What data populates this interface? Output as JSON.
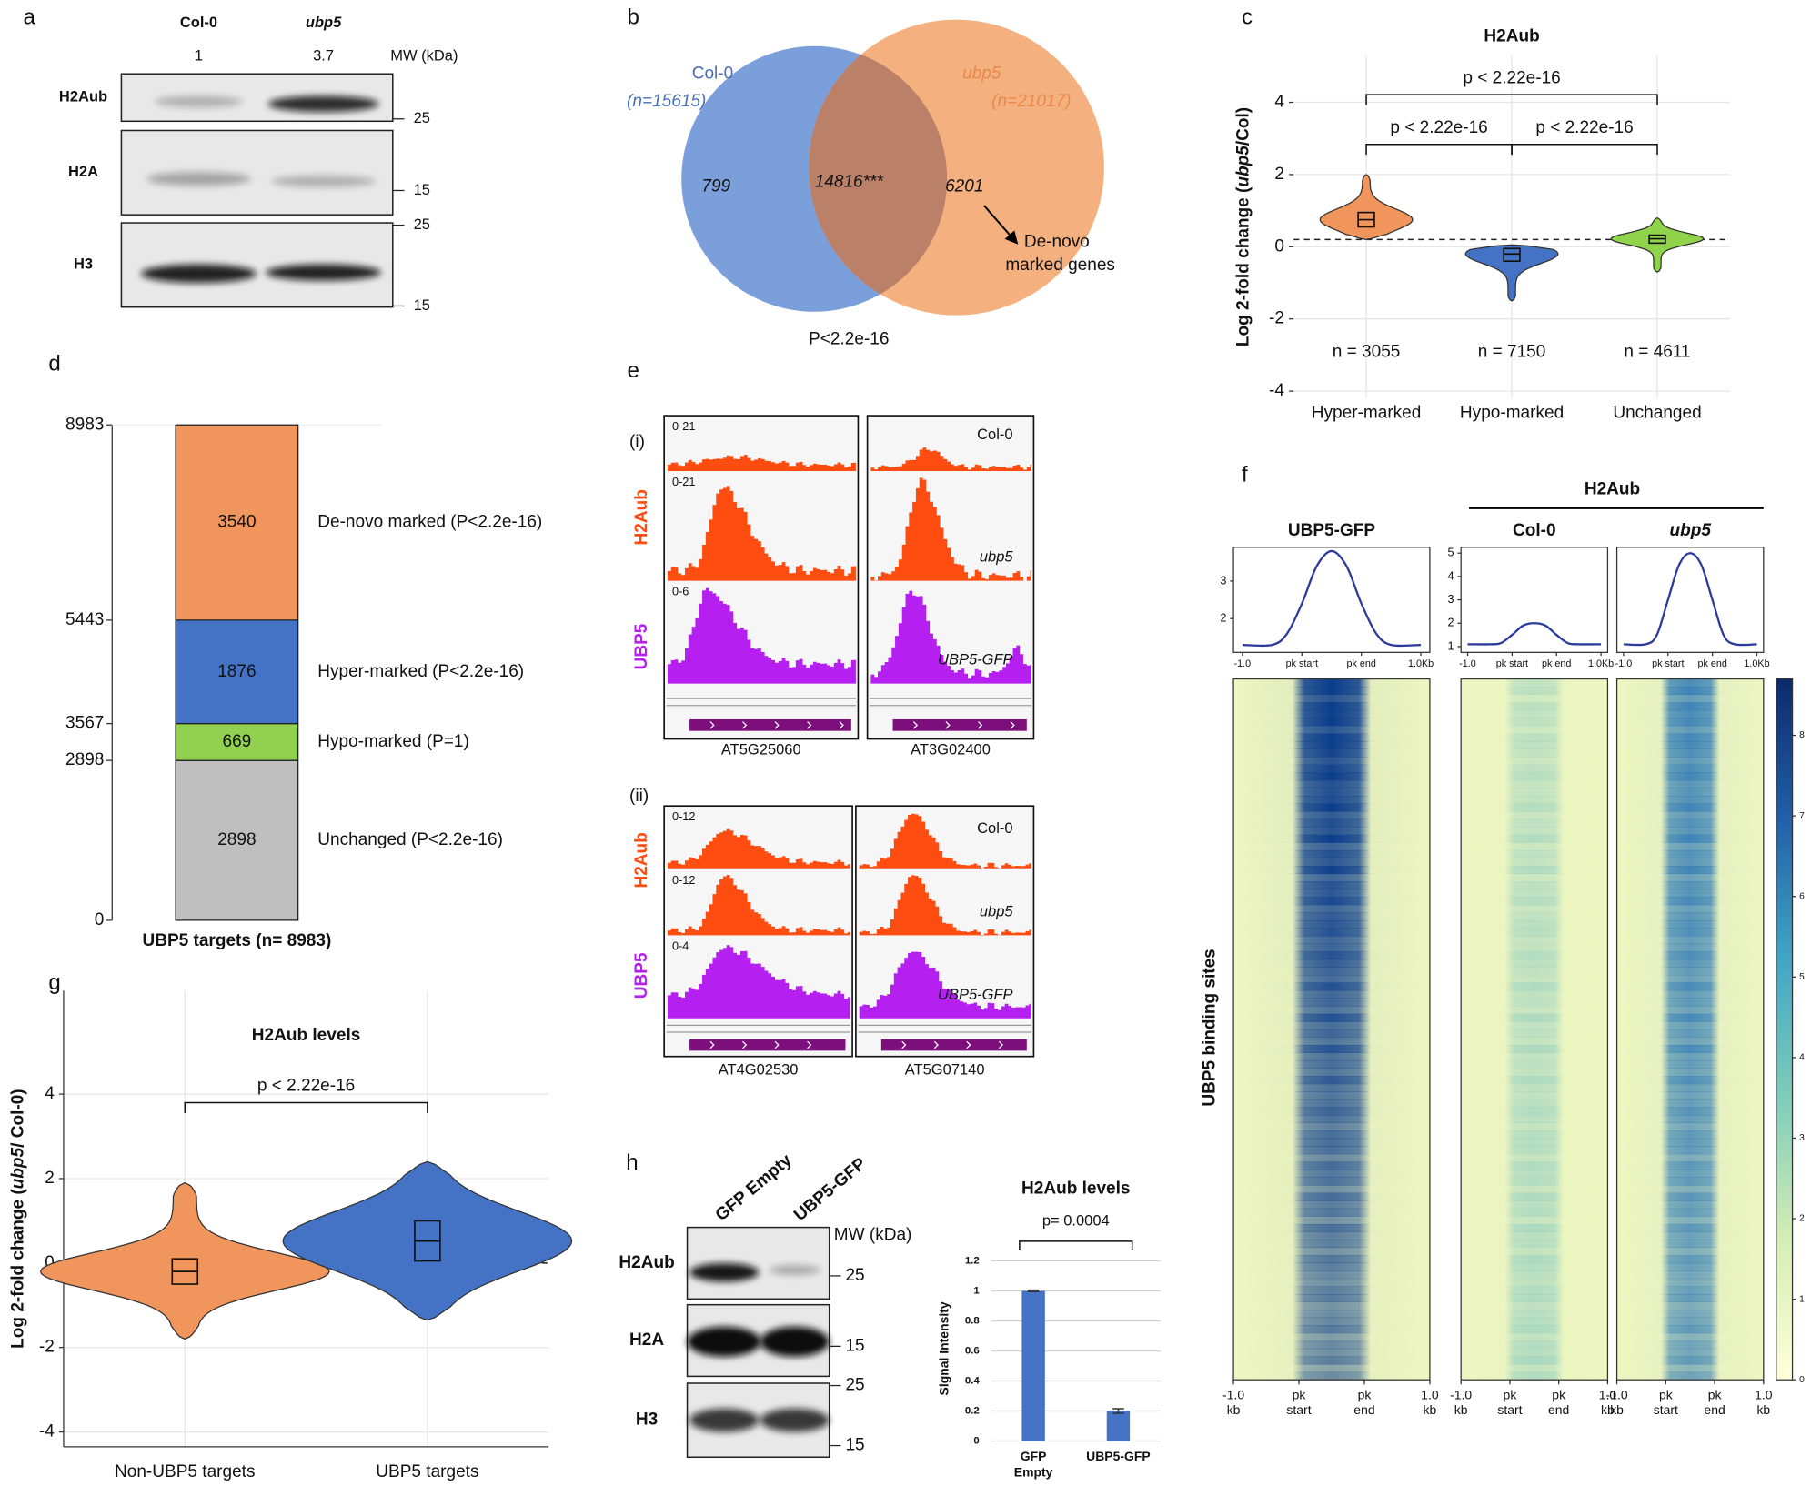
{
  "panels": {
    "a": {
      "label": "a",
      "columns": [
        "Col-0",
        "ubp5"
      ],
      "quantification": [
        1,
        3.7
      ],
      "mw_title": "MW (kDa)",
      "rows": [
        "H2Aub",
        "H2A",
        "H3"
      ],
      "mw_markers": [
        25,
        15,
        25,
        15
      ]
    },
    "b": {
      "label": "b",
      "sets": [
        {
          "name": "Col-0",
          "n": "(n=15615)",
          "color": "#7b9fdb"
        },
        {
          "name": "ubp5",
          "n": "(n=21017)",
          "color": "#f4b07e"
        }
      ],
      "only_first": 799,
      "overlap": "14816***",
      "only_second": 6201,
      "overlap_color": "#bb8068",
      "annotation": [
        "De-novo",
        "marked genes"
      ],
      "p_value": "P<2.2e-16"
    },
    "c": {
      "label": "c",
      "type": "violin",
      "title": "H2Aub",
      "ylabel": [
        "Log 2-fold change (",
        "ubp5",
        "/Col)"
      ],
      "categories": [
        "Hyper-marked",
        "Hypo-marked",
        "Unchanged"
      ],
      "colors": [
        "#f0955b",
        "#4472c4",
        "#8fd44a"
      ],
      "min": [
        0.2,
        -1.5,
        -0.7
      ],
      "q1": [
        0.55,
        -0.4,
        0.1
      ],
      "median": [
        0.75,
        -0.2,
        0.22
      ],
      "q3": [
        0.95,
        -0.05,
        0.32
      ],
      "max": [
        2.0,
        0.05,
        0.8
      ],
      "n_labels": [
        "n = 3055",
        "n = 7150",
        "n = 4611"
      ],
      "ylim": [
        -4.2,
        5.3
      ],
      "yticks": [
        -4,
        -2,
        0,
        2,
        4
      ],
      "reference_line": 0.2,
      "grid": true,
      "comparisons": [
        {
          "groups": [
            "Hyper-marked",
            "Hypo-marked"
          ],
          "label": "p < 2.22e-16"
        },
        {
          "groups": [
            "Hypo-marked",
            "Unchanged"
          ],
          "label": "p < 2.22e-16"
        },
        {
          "groups": [
            "Hyper-marked",
            "Unchanged"
          ],
          "label": "p < 2.22e-16"
        }
      ]
    },
    "d": {
      "label": "d",
      "type": "stacked_bar",
      "xlabel": "UBP5 targets (n= 8983)",
      "series": [
        {
          "name": "Unchanged (P<2.2e-16)",
          "color": "#bfbfbf",
          "value": 2898
        },
        {
          "name": "Hypo-marked (P=1)",
          "color": "#92d050",
          "value": 669
        },
        {
          "name": "Hyper-marked (P<2.2e-16)",
          "color": "#4472c4",
          "value": 1876
        },
        {
          "name": "De-novo marked (P<2.2e-16)",
          "color": "#f0955b",
          "value": 3540
        }
      ],
      "ylim": [
        0,
        8983
      ],
      "yticks": [
        0,
        2898,
        3567,
        5443,
        8983
      ]
    },
    "e": {
      "label": "e",
      "mark_labels": [
        "H2Aub",
        "UBP5"
      ],
      "track_names": [
        "Col-0",
        "ubp5",
        "UBP5-GFP"
      ],
      "sets": [
        {
          "label": "(i)",
          "ranges": [
            "0-21",
            "0-21",
            "0-6"
          ],
          "genes": [
            "AT5G25060",
            "AT3G02400"
          ]
        },
        {
          "label": "(ii)",
          "ranges": [
            "0-12",
            "0-12",
            "0-4"
          ],
          "genes": [
            "AT4G02530",
            "AT5G07140"
          ]
        }
      ]
    },
    "f": {
      "label": "f",
      "group_title": "H2Aub",
      "ylabel": "UBP5 binding sites",
      "line_color": "#2b3a9b",
      "profile_x": [
        0,
        0.5,
        0.75,
        1,
        1.25,
        1.5,
        1.75,
        2,
        2.25,
        2.5,
        3
      ],
      "profile_xlim": [
        -0.15,
        3.15
      ],
      "profile_xticks": [
        {
          "value": 0,
          "label": "-1.0"
        },
        {
          "value": 1,
          "label": "pk start"
        },
        {
          "value": 2,
          "label": "pk end"
        },
        {
          "value": 3,
          "label": "1.0Kb"
        }
      ],
      "profiles": [
        {
          "name": "UBP5-GFP",
          "values": [
            1.3,
            1.3,
            1.6,
            2.4,
            3.4,
            3.8,
            3.4,
            2.4,
            1.6,
            1.3,
            1.3
          ],
          "ylim": [
            1.1,
            3.9
          ],
          "yticks": [
            2,
            3
          ]
        },
        {
          "name": "Col-0",
          "values": [
            1.1,
            1.1,
            1.15,
            1.5,
            1.9,
            2.0,
            1.9,
            1.5,
            1.15,
            1.1,
            1.1
          ],
          "ylim": [
            0.75,
            5.25
          ],
          "yticks": [
            1,
            2,
            3,
            4,
            5
          ]
        },
        {
          "name": "ubp5",
          "values": [
            1.1,
            1.1,
            1.5,
            3,
            4.5,
            5,
            4.5,
            3,
            1.5,
            1.1,
            1.1
          ],
          "ylim": [
            0.75,
            5.25
          ],
          "yticks": []
        }
      ],
      "heatmap_xlim": [
        0,
        3
      ],
      "heatmap_xticks": [
        {
          "value": 0,
          "label": [
            "-1.0",
            "kb"
          ]
        },
        {
          "value": 1,
          "label": [
            "pk",
            "start"
          ]
        },
        {
          "value": 2,
          "label": [
            "pk",
            "end"
          ]
        },
        {
          "value": 3,
          "label": [
            "1.0",
            "kb"
          ]
        }
      ],
      "colorbar": {
        "zlim": [
          0,
          8.7
        ],
        "ticks": [
          0,
          1,
          2,
          3,
          4,
          5,
          6,
          7,
          8
        ]
      }
    },
    "g": {
      "label": "g",
      "type": "violin",
      "title": "H2Aub levels",
      "ylabel": [
        "Log 2-fold change (",
        "ubp5",
        "/ Col-0)"
      ],
      "categories": [
        "Non-UBP5 targets",
        "UBP5 targets"
      ],
      "colors": [
        "#f0955b",
        "#4472c4"
      ],
      "min": [
        -1.8,
        -1.35
      ],
      "q1": [
        -0.5,
        0.05
      ],
      "median": [
        -0.2,
        0.52
      ],
      "q3": [
        0.1,
        1.0
      ],
      "max": [
        1.9,
        2.4
      ],
      "ylim": [
        -4.35,
        6.45
      ],
      "yticks": [
        -4,
        -2,
        0,
        2,
        4
      ],
      "reference_line": 0,
      "grid": true,
      "comparisons": [
        {
          "groups": [
            "Non-UBP5 targets",
            "UBP5 targets"
          ],
          "label": "p < 2.22e-16"
        }
      ]
    },
    "h": {
      "label": "h",
      "blot": {
        "columns": [
          "GFP Empty",
          "UBP5-GFP"
        ],
        "mw_title": "MW (kDa)",
        "rows": [
          "H2Aub",
          "H2A",
          "H3"
        ],
        "mw_markers": [
          25,
          15,
          25,
          15
        ]
      },
      "chart": {
        "type": "bar",
        "title": "H2Aub levels",
        "ylabel": "Signal Intensity",
        "comparison": "p= 0.0004",
        "categories": [
          [
            "GFP",
            "Empty"
          ],
          [
            "UBP5-GFP"
          ]
        ],
        "values": [
          1,
          0.2
        ],
        "errors": [
          0.005,
          0.015
        ],
        "ylim": [
          0,
          1.2
        ],
        "yticks": [
          0,
          0.2,
          0.4,
          0.6,
          0.8,
          1,
          1.2
        ],
        "grid": true,
        "color": "#4472c4"
      }
    }
  }
}
